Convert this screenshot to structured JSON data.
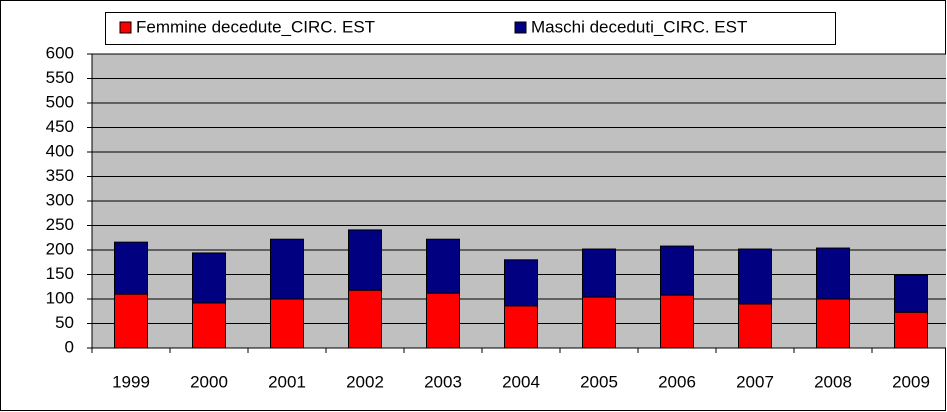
{
  "chart_data": {
    "type": "stacked-bar",
    "categories": [
      "1999",
      "2000",
      "2001",
      "2002",
      "2003",
      "2004",
      "2005",
      "2006",
      "2007",
      "2008",
      "2009"
    ],
    "series": [
      {
        "name": "Femmine decedute_CIRC. EST",
        "color": "#ff0000",
        "values": [
          110,
          92,
          100,
          118,
          112,
          86,
          104,
          108,
          90,
          100,
          73
        ]
      },
      {
        "name": "Maschi deceduti_CIRC. EST",
        "color": "#000080",
        "values": [
          106,
          102,
          122,
          123,
          110,
          94,
          98,
          100,
          112,
          104,
          76
        ]
      }
    ],
    "ylim": [
      0,
      600
    ],
    "yticks": [
      0,
      50,
      100,
      150,
      200,
      250,
      300,
      350,
      400,
      450,
      500,
      550,
      600
    ],
    "grid": true,
    "legend": "top"
  }
}
